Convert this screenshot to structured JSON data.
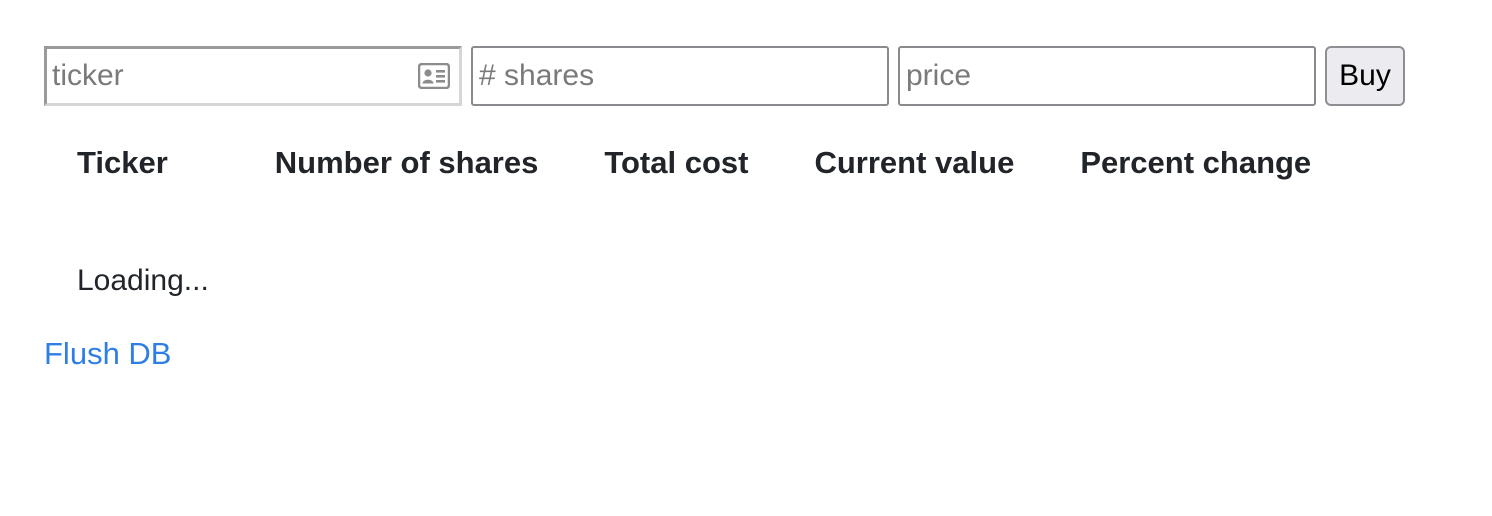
{
  "form": {
    "ticker_placeholder": "ticker",
    "shares_placeholder": "# shares",
    "price_placeholder": "price",
    "buy_label": "Buy",
    "ticker_icon": "contact-card-icon"
  },
  "table": {
    "headers": [
      "Ticker",
      "Number of shares",
      "Total cost",
      "Current value",
      "Percent change"
    ],
    "status": "Loading..."
  },
  "links": {
    "flush_db": "Flush DB"
  },
  "colors": {
    "link": "#2f7ee6",
    "text": "#212529",
    "button_bg": "#ececf0"
  }
}
